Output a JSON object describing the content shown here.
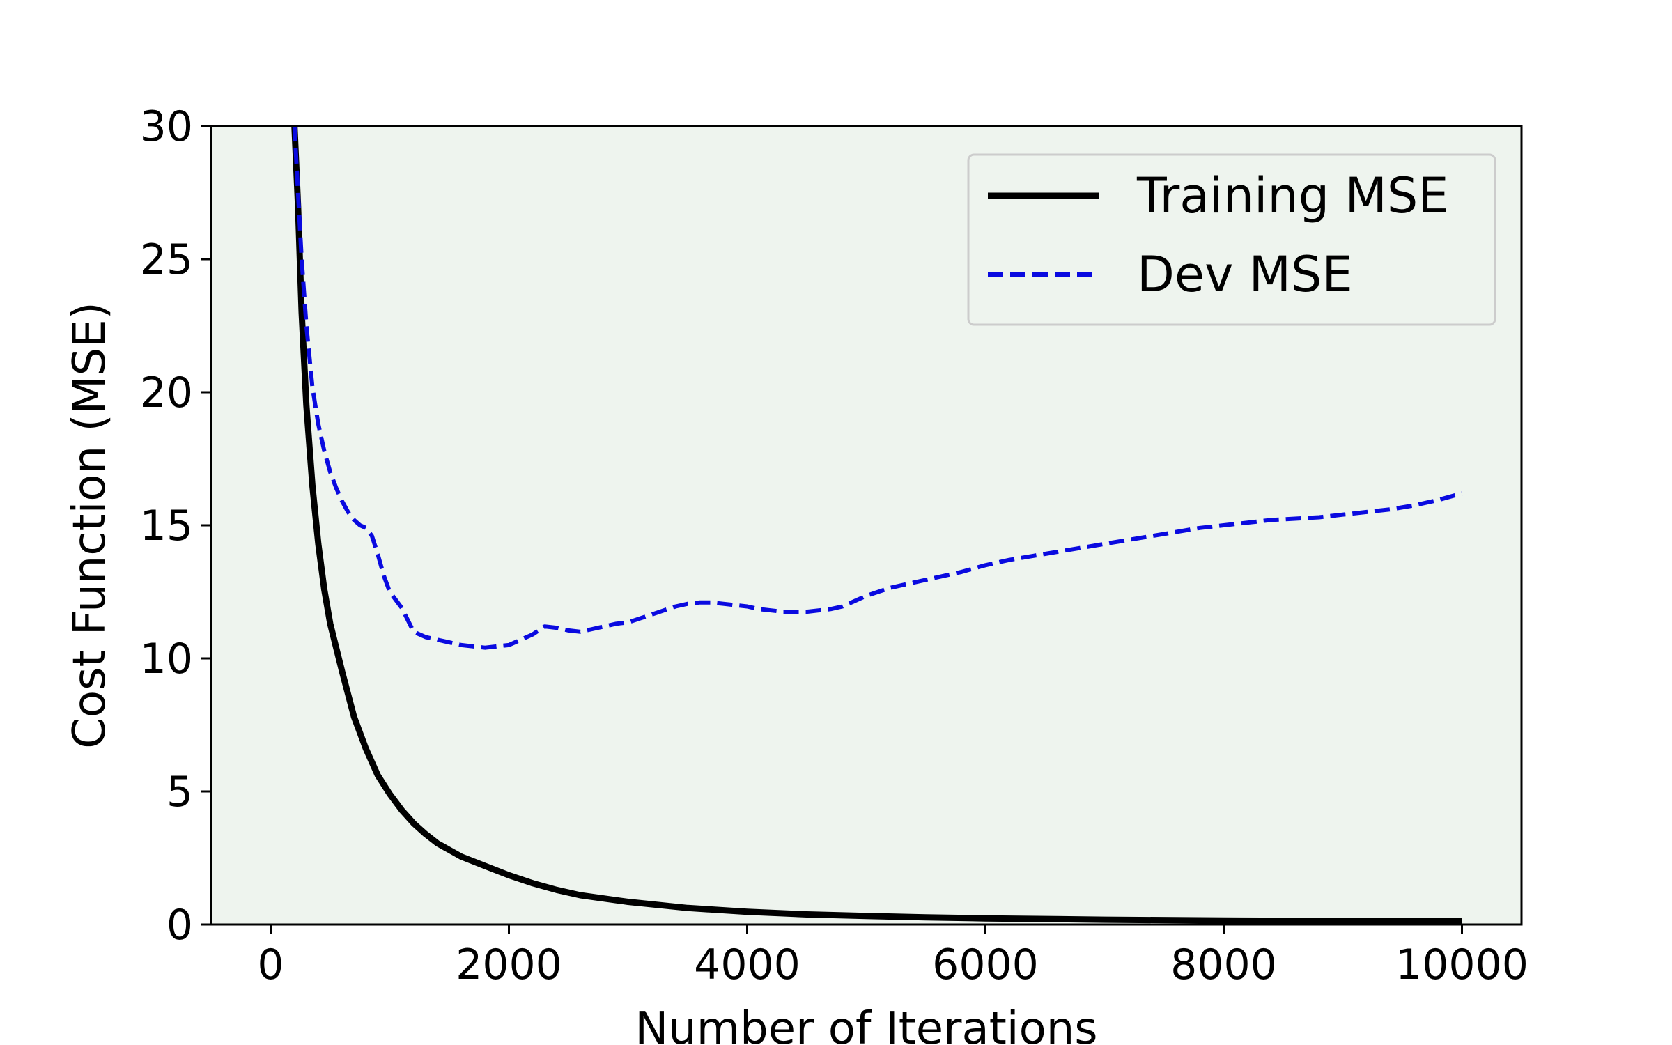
{
  "chart_data": {
    "type": "line",
    "title": "",
    "xlabel": "Number of Iterations",
    "ylabel": "Cost Function (MSE)",
    "xlim": [
      -500,
      10500
    ],
    "ylim": [
      0,
      30
    ],
    "xticks": [
      0,
      2000,
      4000,
      6000,
      8000,
      10000
    ],
    "xtick_labels": [
      "0",
      "2000",
      "4000",
      "6000",
      "8000",
      "10000"
    ],
    "yticks": [
      0,
      5,
      10,
      15,
      20,
      25,
      30
    ],
    "ytick_labels": [
      "0",
      "5",
      "10",
      "15",
      "20",
      "25",
      "30"
    ],
    "plot_background": "#eef4ee",
    "grid": false,
    "legend_position": "upper-right",
    "series": [
      {
        "name": "Training MSE",
        "color": "#000000",
        "style": "solid",
        "x": [
          180,
          200,
          230,
          260,
          300,
          350,
          400,
          450,
          500,
          600,
          700,
          800,
          900,
          1000,
          1100,
          1200,
          1300,
          1400,
          1500,
          1600,
          1800,
          2000,
          2200,
          2400,
          2600,
          3000,
          3500,
          4000,
          4500,
          5000,
          5500,
          6000,
          7000,
          8000,
          9000,
          10000
        ],
        "y": [
          34,
          30,
          27,
          23,
          19.5,
          16.5,
          14.3,
          12.6,
          11.3,
          9.5,
          7.8,
          6.6,
          5.6,
          4.9,
          4.3,
          3.8,
          3.4,
          3.05,
          2.8,
          2.55,
          2.2,
          1.85,
          1.55,
          1.3,
          1.1,
          0.85,
          0.62,
          0.48,
          0.38,
          0.32,
          0.27,
          0.23,
          0.18,
          0.15,
          0.13,
          0.12
        ]
      },
      {
        "name": "Dev MSE",
        "color": "#0a0ae0",
        "style": "dashed",
        "x": [
          200,
          230,
          260,
          300,
          350,
          400,
          450,
          500,
          550,
          600,
          650,
          700,
          750,
          800,
          850,
          900,
          950,
          1000,
          1100,
          1200,
          1300,
          1400,
          1500,
          1600,
          1700,
          1800,
          1900,
          2000,
          2100,
          2200,
          2300,
          2400,
          2500,
          2600,
          2700,
          2800,
          2900,
          3000,
          3100,
          3200,
          3300,
          3400,
          3500,
          3600,
          3700,
          3800,
          3900,
          4000,
          4100,
          4200,
          4300,
          4400,
          4500,
          4600,
          4700,
          4800,
          4900,
          5000,
          5200,
          5400,
          5600,
          5800,
          6000,
          6200,
          6400,
          6600,
          6800,
          7000,
          7200,
          7400,
          7600,
          7800,
          8000,
          8200,
          8400,
          8600,
          8800,
          9000,
          9200,
          9400,
          9600,
          9800,
          10000
        ],
        "y": [
          30,
          27.5,
          25,
          22.5,
          20.2,
          18.8,
          17.8,
          17.0,
          16.4,
          15.9,
          15.5,
          15.2,
          15.0,
          14.9,
          14.6,
          13.9,
          13.1,
          12.5,
          11.9,
          11.0,
          10.8,
          10.7,
          10.6,
          10.5,
          10.45,
          10.4,
          10.45,
          10.5,
          10.7,
          10.9,
          11.2,
          11.15,
          11.05,
          11.0,
          11.1,
          11.2,
          11.3,
          11.35,
          11.5,
          11.65,
          11.8,
          11.95,
          12.05,
          12.1,
          12.1,
          12.05,
          12.0,
          11.95,
          11.85,
          11.8,
          11.75,
          11.75,
          11.75,
          11.8,
          11.85,
          11.95,
          12.15,
          12.35,
          12.65,
          12.85,
          13.05,
          13.25,
          13.5,
          13.7,
          13.85,
          14.0,
          14.15,
          14.3,
          14.45,
          14.6,
          14.75,
          14.9,
          15.0,
          15.1,
          15.2,
          15.25,
          15.3,
          15.4,
          15.5,
          15.6,
          15.75,
          15.95,
          16.2
        ]
      }
    ]
  }
}
